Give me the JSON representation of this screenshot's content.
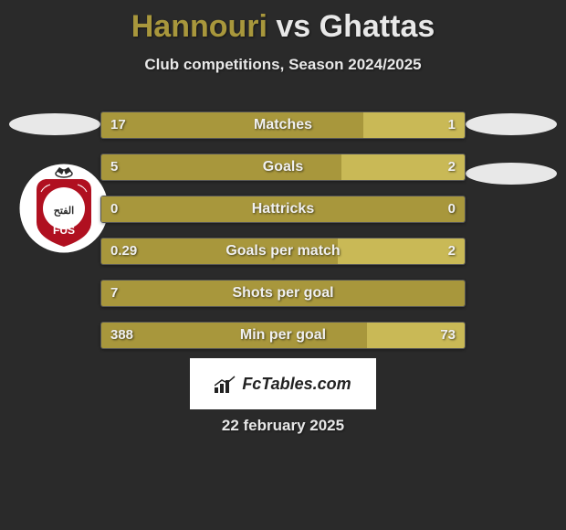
{
  "title": {
    "player1": "Hannouri",
    "vs": " vs ",
    "player2": "Ghattas",
    "color1": "#a8973c",
    "color2": "#e8e8e8"
  },
  "subtitle": "Club competitions, Season 2024/2025",
  "bar_settings": {
    "left_color": "#a8973c",
    "right_color": "#c9b956",
    "height": 30,
    "gap": 16,
    "label_fontsize": 16,
    "value_fontsize": 15,
    "text_color": "#f0f0f0"
  },
  "stats": [
    {
      "label": "Matches",
      "left_val": "17",
      "right_val": "1",
      "left_pct": 72,
      "right_pct": 28
    },
    {
      "label": "Goals",
      "left_val": "5",
      "right_val": "2",
      "left_pct": 66,
      "right_pct": 34
    },
    {
      "label": "Hattricks",
      "left_val": "0",
      "right_val": "0",
      "left_pct": 100,
      "right_pct": 0
    },
    {
      "label": "Goals per match",
      "left_val": "0.29",
      "right_val": "2",
      "left_pct": 65,
      "right_pct": 35
    },
    {
      "label": "Shots per goal",
      "left_val": "7",
      "right_val": "",
      "left_pct": 100,
      "right_pct": 0
    },
    {
      "label": "Min per goal",
      "left_val": "388",
      "right_val": "73",
      "left_pct": 73,
      "right_pct": 27
    }
  ],
  "footer": {
    "brand": "FcTables.com",
    "date": "22 february 2025"
  },
  "logo": {
    "bg": "#ffffff",
    "shield": "#b01020",
    "accent": "#2a2a2a"
  }
}
